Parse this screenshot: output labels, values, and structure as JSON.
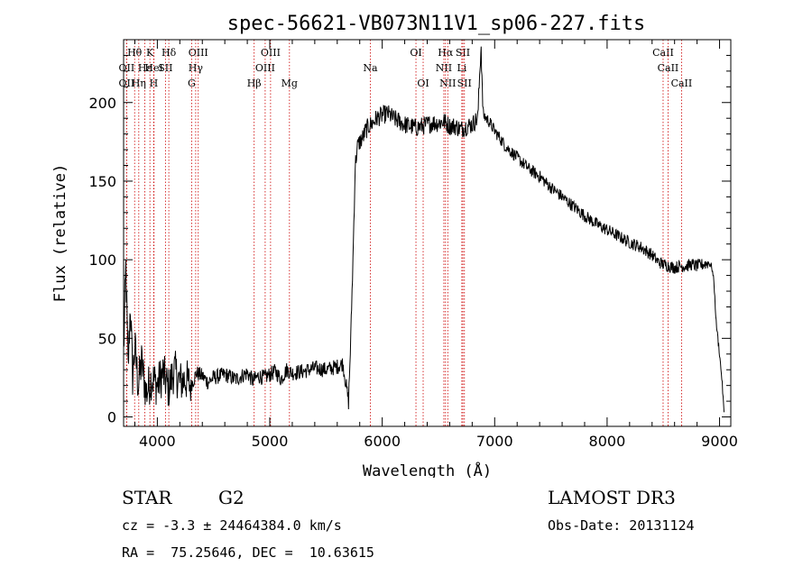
{
  "chart_data": {
    "type": "line",
    "title": "spec-56621-VB073N11V1_sp06-227.fits",
    "xlabel": "Wavelength (Å)",
    "ylabel": "Flux (relative)",
    "xlim": [
      3700,
      9100
    ],
    "ylim": [
      -6,
      240
    ],
    "xticks": [
      4000,
      5000,
      6000,
      7000,
      8000,
      9000
    ],
    "yticks": [
      0,
      50,
      100,
      150,
      200
    ],
    "grid": false,
    "series": [
      {
        "name": "flux",
        "x": [
          3700,
          3720,
          3740,
          3760,
          3780,
          3800,
          3830,
          3860,
          3900,
          3950,
          4000,
          4050,
          4100,
          4150,
          4200,
          4250,
          4300,
          4350,
          4400,
          4450,
          4500,
          4600,
          4700,
          4800,
          4850,
          4900,
          4950,
          5000,
          5050,
          5100,
          5150,
          5200,
          5300,
          5400,
          5500,
          5600,
          5650,
          5700,
          5720,
          5740,
          5760,
          5780,
          5800,
          5830,
          5850,
          5880,
          5900,
          5950,
          6000,
          6050,
          6100,
          6150,
          6200,
          6250,
          6300,
          6350,
          6400,
          6450,
          6500,
          6550,
          6600,
          6650,
          6700,
          6750,
          6800,
          6850,
          6870,
          6880,
          6890,
          6900,
          6950,
          7000,
          7100,
          7200,
          7300,
          7400,
          7500,
          7600,
          7700,
          7800,
          7900,
          8000,
          8100,
          8200,
          8300,
          8400,
          8450,
          8500,
          8550,
          8600,
          8650,
          8700,
          8750,
          8800,
          8850,
          8900,
          8930,
          8950,
          8970,
          9000,
          9020,
          9040
        ],
        "y": [
          40,
          95,
          30,
          72,
          25,
          45,
          20,
          35,
          15,
          25,
          20,
          28,
          18,
          30,
          22,
          24,
          20,
          28,
          26,
          22,
          25,
          27,
          24,
          28,
          23,
          26,
          25,
          27,
          29,
          24,
          30,
          28,
          29,
          31,
          30,
          32,
          34,
          10,
          50,
          100,
          160,
          172,
          175,
          178,
          182,
          185,
          186,
          190,
          192,
          193,
          190,
          188,
          186,
          185,
          184,
          185,
          186,
          187,
          187,
          188,
          185,
          185,
          183,
          185,
          186,
          190,
          224,
          236,
          205,
          192,
          188,
          182,
          172,
          165,
          158,
          153,
          146,
          140,
          134,
          128,
          123,
          119,
          115,
          111,
          108,
          103,
          99,
          97,
          96,
          95,
          96,
          96,
          97,
          96,
          97,
          98,
          96,
          86,
          60,
          40,
          25,
          3
        ]
      }
    ],
    "emission_lines": [
      {
        "label": "Hθ",
        "wavelength": 3798,
        "row": 0
      },
      {
        "label": "OII",
        "wavelength": 3727,
        "row": 1
      },
      {
        "label": "OII",
        "wavelength": 3727,
        "row": 2
      },
      {
        "label": "K",
        "wavelength": 3934,
        "row": 0
      },
      {
        "label": "Hε",
        "wavelength": 3889,
        "row": 1
      },
      {
        "label": "Hη",
        "wavelength": 3835,
        "row": 2
      },
      {
        "label": "HeI",
        "wavelength": 3970,
        "row": 1
      },
      {
        "label": "H",
        "wavelength": 3968,
        "row": 2
      },
      {
        "label": "SII",
        "wavelength": 4072,
        "row": 1
      },
      {
        "label": "Hδ",
        "wavelength": 4102,
        "row": 0
      },
      {
        "label": "OIII",
        "wavelength": 4364,
        "row": 0
      },
      {
        "label": "Hγ",
        "wavelength": 4341,
        "row": 1
      },
      {
        "label": "G",
        "wavelength": 4305,
        "row": 2
      },
      {
        "label": "Hβ",
        "wavelength": 4861,
        "row": 2
      },
      {
        "label": "OIII",
        "wavelength": 4959,
        "row": 1
      },
      {
        "label": "OIII",
        "wavelength": 5007,
        "row": 0
      },
      {
        "label": "Mg",
        "wavelength": 5175,
        "row": 2
      },
      {
        "label": "Na",
        "wavelength": 5894,
        "row": 1
      },
      {
        "label": "OI",
        "wavelength": 6300,
        "row": 0
      },
      {
        "label": "OI",
        "wavelength": 6364,
        "row": 2
      },
      {
        "label": "Hα",
        "wavelength": 6563,
        "row": 0
      },
      {
        "label": "NII",
        "wavelength": 6548,
        "row": 1
      },
      {
        "label": "NII",
        "wavelength": 6583,
        "row": 2
      },
      {
        "label": "SII",
        "wavelength": 6717,
        "row": 0
      },
      {
        "label": "Li",
        "wavelength": 6708,
        "row": 1
      },
      {
        "label": "SII",
        "wavelength": 6731,
        "row": 2
      },
      {
        "label": "CaII",
        "wavelength": 8498,
        "row": 0
      },
      {
        "label": "CaII",
        "wavelength": 8542,
        "row": 1
      },
      {
        "label": "CaII",
        "wavelength": 8662,
        "row": 2
      }
    ]
  },
  "info": {
    "class": "STAR",
    "subclass": "G2",
    "survey": "LAMOST DR3",
    "cz_line": "cz = -3.3 ± 24464384.0 km/s",
    "obs_date": "Obs-Date: 20131124",
    "radec_line": "RA =  75.25646, DEC =  10.63615"
  },
  "colors": {
    "line": "#000000",
    "marker": "#cc0000",
    "axis": "#000000"
  }
}
